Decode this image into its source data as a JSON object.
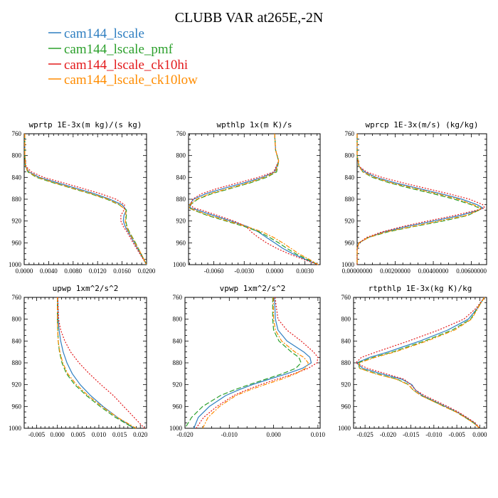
{
  "title": "CLUBB VAR at265E,-2N",
  "colors": {
    "cam144_lscale": "#2f7fc1",
    "cam144_lscale_pmf": "#2ca02c",
    "cam144_lscale_ck10hi": "#e31a1c",
    "cam144_lscale_ck10low": "#ff8c00"
  },
  "legend": [
    {
      "label": "cam144_lscale",
      "color": "#2f7fc1"
    },
    {
      "label": "cam144_lscale_pmf",
      "color": "#2ca02c"
    },
    {
      "label": "cam144_lscale_ck10hi",
      "color": "#e31a1c"
    },
    {
      "label": "cam144_lscale_ck10low",
      "color": "#ff8c00"
    }
  ],
  "chart_data": [
    {
      "type": "line",
      "title": "wprtp  1E-3x(m kg)/(s kg)",
      "xlim": [
        0,
        0.02
      ],
      "ylim": [
        760,
        1000
      ],
      "y_reversed": true,
      "xticks": [
        0,
        0.004,
        0.008,
        0.012,
        0.016,
        0.02
      ],
      "xtick_labels": [
        "0.0000",
        "0.0040",
        "0.0080",
        "0.0120",
        "0.0160",
        "0.0200"
      ],
      "yticks": [
        760,
        800,
        840,
        880,
        920,
        960,
        1000
      ],
      "y": [
        760,
        800,
        820,
        830,
        840,
        850,
        860,
        870,
        880,
        890,
        900,
        910,
        920,
        930,
        940,
        960,
        980,
        1000
      ],
      "series": [
        {
          "name": "cam144_lscale",
          "values": [
            0.0001,
            0.0001,
            0.0002,
            0.0008,
            0.0025,
            0.0055,
            0.0085,
            0.0115,
            0.014,
            0.016,
            0.0167,
            0.0163,
            0.0162,
            0.0165,
            0.017,
            0.018,
            0.019,
            0.02
          ]
        },
        {
          "name": "cam144_lscale_pmf",
          "values": [
            0.0001,
            0.0001,
            0.0002,
            0.0006,
            0.002,
            0.0048,
            0.0078,
            0.0108,
            0.0135,
            0.0155,
            0.0167,
            0.0167,
            0.0166,
            0.0168,
            0.0172,
            0.0182,
            0.0191,
            0.02
          ]
        },
        {
          "name": "cam144_lscale_ck10hi",
          "values": [
            0.0001,
            0.0001,
            0.0003,
            0.0012,
            0.0032,
            0.0064,
            0.0095,
            0.0125,
            0.015,
            0.0164,
            0.0163,
            0.0158,
            0.0158,
            0.0162,
            0.0168,
            0.0178,
            0.0189,
            0.02
          ]
        },
        {
          "name": "cam144_lscale_ck10low",
          "values": [
            0.0001,
            0.0001,
            0.0002,
            0.0007,
            0.0022,
            0.005,
            0.008,
            0.011,
            0.0137,
            0.0156,
            0.0166,
            0.0166,
            0.0165,
            0.0167,
            0.0171,
            0.0181,
            0.0191,
            0.02
          ]
        }
      ]
    },
    {
      "type": "line",
      "title": "wpthlp  1x(m K)/s",
      "xlim": [
        -0.0085,
        0.0045
      ],
      "ylim": [
        760,
        1000
      ],
      "y_reversed": true,
      "xticks": [
        -0.006,
        -0.003,
        0,
        0.003
      ],
      "xtick_labels": [
        "-0.0060",
        "-0.0030",
        "0.0000",
        "0.0030"
      ],
      "yticks": [
        760,
        800,
        840,
        880,
        920,
        960,
        1000
      ],
      "y": [
        760,
        790,
        810,
        830,
        840,
        850,
        860,
        870,
        880,
        890,
        896,
        900,
        910,
        920,
        930,
        940,
        950,
        960,
        970,
        980,
        990,
        1000
      ],
      "series": [
        {
          "name": "cam144_lscale",
          "values": [
            0.0,
            0.0001,
            0.0004,
            0.0,
            -0.0012,
            -0.003,
            -0.005,
            -0.0068,
            -0.008,
            -0.0084,
            -0.0083,
            -0.0076,
            -0.006,
            -0.0043,
            -0.0027,
            -0.0016,
            -0.0008,
            0.0,
            0.0008,
            0.0018,
            0.003,
            0.0043
          ]
        },
        {
          "name": "cam144_lscale_pmf",
          "values": [
            0.0,
            0.0001,
            0.0004,
            0.0002,
            -0.0008,
            -0.0024,
            -0.0043,
            -0.0062,
            -0.0076,
            -0.0083,
            -0.0084,
            -0.008,
            -0.0066,
            -0.0048,
            -0.003,
            -0.0015,
            -0.0005,
            0.0004,
            0.0012,
            0.0021,
            0.0032,
            0.0043
          ]
        },
        {
          "name": "cam144_lscale_ck10hi",
          "values": [
            0.0,
            0.0001,
            0.0004,
            -0.0001,
            -0.0016,
            -0.0036,
            -0.0056,
            -0.0072,
            -0.0081,
            -0.0083,
            -0.008,
            -0.0072,
            -0.0056,
            -0.004,
            -0.0028,
            -0.0023,
            -0.0016,
            -0.0008,
            0.0002,
            0.0014,
            0.0028,
            0.0043
          ]
        },
        {
          "name": "cam144_lscale_ck10low",
          "values": [
            0.0,
            0.0001,
            0.0004,
            0.0001,
            -0.001,
            -0.0026,
            -0.0045,
            -0.0064,
            -0.0077,
            -0.0084,
            -0.0084,
            -0.0079,
            -0.0064,
            -0.0046,
            -0.0028,
            -0.0012,
            -0.0001,
            0.0008,
            0.0016,
            0.0024,
            0.0034,
            0.0043
          ]
        }
      ]
    },
    {
      "type": "line",
      "title": "wprcp  1E-3x(m/s) (kg/kg)",
      "xlim": [
        0,
        0.0068
      ],
      "ylim": [
        760,
        1000
      ],
      "y_reversed": true,
      "xticks": [
        0,
        0.002,
        0.004,
        0.006
      ],
      "xtick_labels": [
        "0.00000000",
        "0.00200000",
        "0.00400000",
        "0.00600000"
      ],
      "yticks": [
        760,
        800,
        840,
        880,
        920,
        960,
        1000
      ],
      "y": [
        760,
        800,
        820,
        830,
        840,
        850,
        860,
        870,
        880,
        890,
        896,
        900,
        910,
        920,
        930,
        940,
        950,
        960,
        970,
        980,
        1000
      ],
      "series": [
        {
          "name": "cam144_lscale",
          "values": [
            0.0,
            0.0,
            0.0001,
            0.0004,
            0.001,
            0.002,
            0.0032,
            0.0044,
            0.0055,
            0.0063,
            0.0066,
            0.0064,
            0.0054,
            0.004,
            0.0026,
            0.0014,
            0.0006,
            0.0001,
            0.0,
            0.0,
            0.0
          ]
        },
        {
          "name": "cam144_lscale_pmf",
          "values": [
            0.0,
            0.0,
            0.0001,
            0.0003,
            0.0008,
            0.0017,
            0.0028,
            0.004,
            0.0051,
            0.006,
            0.0064,
            0.0064,
            0.0058,
            0.0045,
            0.003,
            0.0016,
            0.0006,
            0.0001,
            0.0,
            0.0,
            0.0
          ]
        },
        {
          "name": "cam144_lscale_ck10hi",
          "values": [
            0.0,
            0.0,
            0.0001,
            0.0005,
            0.0013,
            0.0024,
            0.0036,
            0.0048,
            0.0059,
            0.0066,
            0.0067,
            0.0063,
            0.0051,
            0.0037,
            0.0024,
            0.0013,
            0.0005,
            0.0001,
            0.0,
            0.0,
            0.0
          ]
        },
        {
          "name": "cam144_lscale_ck10low",
          "values": [
            0.0,
            0.0,
            0.0001,
            0.0003,
            0.0009,
            0.0018,
            0.003,
            0.0042,
            0.0053,
            0.0061,
            0.0065,
            0.0064,
            0.0057,
            0.0043,
            0.0029,
            0.0015,
            0.0006,
            0.0001,
            0.0,
            0.0,
            0.0
          ]
        }
      ]
    },
    {
      "type": "line",
      "title": "upwp  1xm^2/s^2",
      "xlim": [
        -0.008,
        0.0215
      ],
      "ylim": [
        760,
        1000
      ],
      "y_reversed": true,
      "xticks": [
        -0.005,
        0,
        0.005,
        0.01,
        0.015,
        0.02
      ],
      "xtick_labels": [
        "-0.005",
        "0.000",
        "0.005",
        "0.010",
        "0.015",
        "0.020"
      ],
      "yticks": [
        760,
        800,
        840,
        880,
        920,
        960,
        1000
      ],
      "y": [
        760,
        800,
        820,
        840,
        860,
        880,
        900,
        920,
        940,
        960,
        980,
        1000
      ],
      "series": [
        {
          "name": "cam144_lscale",
          "values": [
            0.0001,
            0.0002,
            0.0004,
            0.0008,
            0.0014,
            0.0023,
            0.0036,
            0.0055,
            0.008,
            0.011,
            0.0145,
            0.0185
          ]
        },
        {
          "name": "cam144_lscale_pmf",
          "values": [
            0.0,
            0.0,
            0.0001,
            0.0002,
            0.0005,
            0.0011,
            0.0022,
            0.0042,
            0.007,
            0.0103,
            0.014,
            0.0185
          ]
        },
        {
          "name": "cam144_lscale_ck10hi",
          "values": [
            0.0001,
            0.0003,
            0.0008,
            0.0018,
            0.0032,
            0.0052,
            0.0077,
            0.0105,
            0.0135,
            0.016,
            0.0185,
            0.021
          ]
        },
        {
          "name": "cam144_lscale_ck10low",
          "values": [
            0.0,
            0.0,
            0.0001,
            0.0002,
            0.0006,
            0.0013,
            0.0025,
            0.0046,
            0.0074,
            0.0107,
            0.0145,
            0.019
          ]
        }
      ]
    },
    {
      "type": "line",
      "title": "vpwp  1xm^2/s^2",
      "xlim": [
        -0.02,
        0.0105
      ],
      "ylim": [
        760,
        1000
      ],
      "y_reversed": true,
      "xticks": [
        -0.02,
        -0.01,
        0,
        0.01
      ],
      "xtick_labels": [
        "-0.020",
        "-0.010",
        "0.000",
        "0.010"
      ],
      "yticks": [
        760,
        800,
        840,
        880,
        920,
        960,
        1000
      ],
      "y": [
        760,
        800,
        820,
        840,
        860,
        870,
        880,
        890,
        900,
        910,
        920,
        930,
        940,
        960,
        980,
        1000
      ],
      "series": [
        {
          "name": "cam144_lscale",
          "values": [
            0.0002,
            0.0004,
            0.001,
            0.003,
            0.0068,
            0.0082,
            0.0085,
            0.0065,
            0.003,
            -0.001,
            -0.0048,
            -0.008,
            -0.0108,
            -0.0145,
            -0.017,
            -0.018
          ]
        },
        {
          "name": "cam144_lscale_pmf",
          "values": [
            -0.0002,
            -0.0002,
            0.0,
            0.0012,
            0.004,
            0.0057,
            0.0062,
            0.005,
            0.002,
            -0.0018,
            -0.0055,
            -0.009,
            -0.012,
            -0.016,
            -0.0185,
            -0.02
          ]
        },
        {
          "name": "cam144_lscale_ck10hi",
          "values": [
            0.0003,
            0.001,
            0.003,
            0.0062,
            0.009,
            0.01,
            0.0098,
            0.0078,
            0.0046,
            0.0008,
            -0.003,
            -0.0062,
            -0.009,
            -0.0128,
            -0.0158,
            -0.0175
          ]
        },
        {
          "name": "cam144_lscale_ck10low",
          "values": [
            -0.0001,
            0.0,
            0.0004,
            0.0018,
            0.0048,
            0.0068,
            0.0078,
            0.0072,
            0.005,
            0.0018,
            -0.002,
            -0.0055,
            -0.0085,
            -0.0122,
            -0.0148,
            -0.016
          ]
        }
      ]
    },
    {
      "type": "line",
      "title": "rtpthlp  1E-3x(kg K)/kg",
      "xlim": [
        -0.0275,
        0.0015
      ],
      "ylim": [
        760,
        1000
      ],
      "y_reversed": true,
      "xticks": [
        -0.025,
        -0.02,
        -0.015,
        -0.01,
        -0.005,
        0
      ],
      "xtick_labels": [
        "-0.025",
        "-0.020",
        "-0.015",
        "-0.010",
        "-0.005",
        "0.000"
      ],
      "yticks": [
        760,
        800,
        840,
        880,
        920,
        960,
        1000
      ],
      "y": [
        760,
        780,
        800,
        820,
        840,
        850,
        860,
        870,
        880,
        890,
        900,
        910,
        920,
        930,
        940,
        950,
        960,
        970,
        980,
        990,
        1000
      ],
      "series": [
        {
          "name": "cam144_lscale",
          "values": [
            0.001,
            -0.0005,
            -0.0025,
            -0.007,
            -0.013,
            -0.0165,
            -0.02,
            -0.024,
            -0.0268,
            -0.0255,
            -0.0215,
            -0.017,
            -0.0148,
            -0.014,
            -0.0125,
            -0.01,
            -0.0075,
            -0.005,
            -0.003,
            -0.0012,
            0.0
          ]
        },
        {
          "name": "cam144_lscale_pmf",
          "values": [
            0.001,
            -0.0005,
            -0.002,
            -0.006,
            -0.012,
            -0.0155,
            -0.019,
            -0.0232,
            -0.0265,
            -0.0262,
            -0.0225,
            -0.018,
            -0.0155,
            -0.0145,
            -0.0128,
            -0.0102,
            -0.0078,
            -0.0052,
            -0.0032,
            -0.0014,
            0.0
          ]
        },
        {
          "name": "cam144_lscale_ck10hi",
          "values": [
            0.001,
            -0.0008,
            -0.0035,
            -0.009,
            -0.0155,
            -0.019,
            -0.0225,
            -0.0258,
            -0.027,
            -0.0245,
            -0.0205,
            -0.0165,
            -0.015,
            -0.014,
            -0.012,
            -0.0095,
            -0.007,
            -0.0047,
            -0.0028,
            -0.001,
            0.0
          ]
        },
        {
          "name": "cam144_lscale_ck10low",
          "values": [
            0.001,
            -0.0004,
            -0.0018,
            -0.0055,
            -0.0115,
            -0.015,
            -0.0185,
            -0.0228,
            -0.0262,
            -0.0262,
            -0.0228,
            -0.0182,
            -0.0156,
            -0.0145,
            -0.0128,
            -0.0103,
            -0.0078,
            -0.0052,
            -0.0032,
            -0.0014,
            0.0
          ]
        }
      ]
    }
  ]
}
